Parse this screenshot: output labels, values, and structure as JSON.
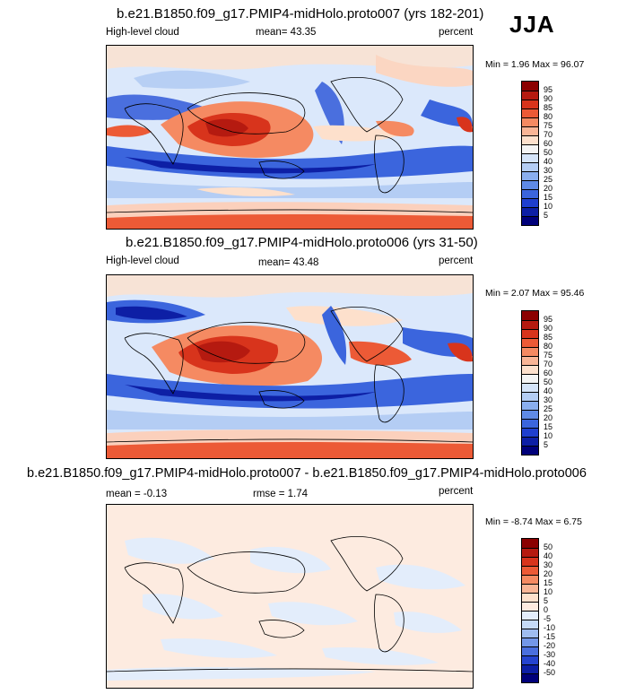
{
  "season": "JJA",
  "panels": [
    {
      "title": "b.e21.B1850.f09_g17.PMIP4-midHolo.proto007 (yrs 182-201)",
      "left_label": "High-level cloud",
      "center_label": "mean=  43.35",
      "right_label": "percent",
      "minmax": "Min =   1.96 Max =  96.07",
      "colorbar": {
        "labels": [
          "95",
          "90",
          "85",
          "80",
          "75",
          "70",
          "60",
          "50",
          "40",
          "30",
          "25",
          "20",
          "15",
          "10",
          "5"
        ],
        "colors": [
          "#8b0000",
          "#b51a10",
          "#d8341c",
          "#ec5a36",
          "#f58a62",
          "#f9b596",
          "#fde0cc",
          "#f4f4f4",
          "#d5e4f9",
          "#b4cdf4",
          "#8aaeee",
          "#5f8ae6",
          "#3b65dd",
          "#1f3fcf",
          "#0d1fa5",
          "#00007a"
        ]
      }
    },
    {
      "title": "b.e21.B1850.f09_g17.PMIP4-midHolo.proto006 (yrs 31-50)",
      "left_label": "High-level cloud",
      "center_label": "mean=  43.48",
      "right_label": "percent",
      "minmax": "Min =   2.07 Max =  95.46",
      "colorbar": {
        "labels": [
          "95",
          "90",
          "85",
          "80",
          "75",
          "70",
          "60",
          "50",
          "40",
          "30",
          "25",
          "20",
          "15",
          "10",
          "5"
        ],
        "colors": [
          "#8b0000",
          "#b51a10",
          "#d8341c",
          "#ec5a36",
          "#f58a62",
          "#f9b596",
          "#fde0cc",
          "#f4f4f4",
          "#d5e4f9",
          "#b4cdf4",
          "#8aaeee",
          "#5f8ae6",
          "#3b65dd",
          "#1f3fcf",
          "#0d1fa5",
          "#00007a"
        ]
      }
    },
    {
      "title": "b.e21.B1850.f09_g17.PMIP4-midHolo.proto007 - b.e21.B1850.f09_g17.PMIP4-midHolo.proto006",
      "left_label": "mean =  -0.13",
      "center_label": "rmse =   1.74",
      "right_label": "percent",
      "minmax": "Min =  -8.74 Max =   6.75",
      "colorbar": {
        "labels": [
          "50",
          "40",
          "30",
          "20",
          "15",
          "10",
          "5",
          "0",
          "-5",
          "-10",
          "-15",
          "-20",
          "-30",
          "-40",
          "-50"
        ],
        "colors": [
          "#8b0000",
          "#b51a10",
          "#d8341c",
          "#ec5a36",
          "#f58a62",
          "#f9b596",
          "#fde0cc",
          "#fdebe0",
          "#e3edfb",
          "#c5daf7",
          "#9fbdf0",
          "#7397e8",
          "#4a6fde",
          "#2544cf",
          "#0d1fa5",
          "#00007a"
        ]
      }
    }
  ],
  "chart_data": [
    {
      "type": "heatmap",
      "title": "b.e21.B1850.f09_g17.PMIP4-midHolo.proto007 (yrs 182-201)",
      "variable": "High-level cloud",
      "units": "percent",
      "mean": 43.35,
      "min": 1.96,
      "max": 96.07,
      "contour_levels": [
        5,
        10,
        15,
        20,
        25,
        30,
        40,
        50,
        60,
        70,
        75,
        80,
        85,
        90,
        95
      ]
    },
    {
      "type": "heatmap",
      "title": "b.e21.B1850.f09_g17.PMIP4-midHolo.proto006 (yrs 31-50)",
      "variable": "High-level cloud",
      "units": "percent",
      "mean": 43.48,
      "min": 2.07,
      "max": 95.46,
      "contour_levels": [
        5,
        10,
        15,
        20,
        25,
        30,
        40,
        50,
        60,
        70,
        75,
        80,
        85,
        90,
        95
      ]
    },
    {
      "type": "heatmap",
      "title": "b.e21.B1850.f09_g17.PMIP4-midHolo.proto007 - b.e21.B1850.f09_g17.PMIP4-midHolo.proto006",
      "units": "percent",
      "mean": -0.13,
      "rmse": 1.74,
      "min": -8.74,
      "max": 6.75,
      "contour_levels": [
        -50,
        -40,
        -30,
        -20,
        -15,
        -10,
        -5,
        0,
        5,
        10,
        15,
        20,
        30,
        40,
        50
      ]
    }
  ]
}
